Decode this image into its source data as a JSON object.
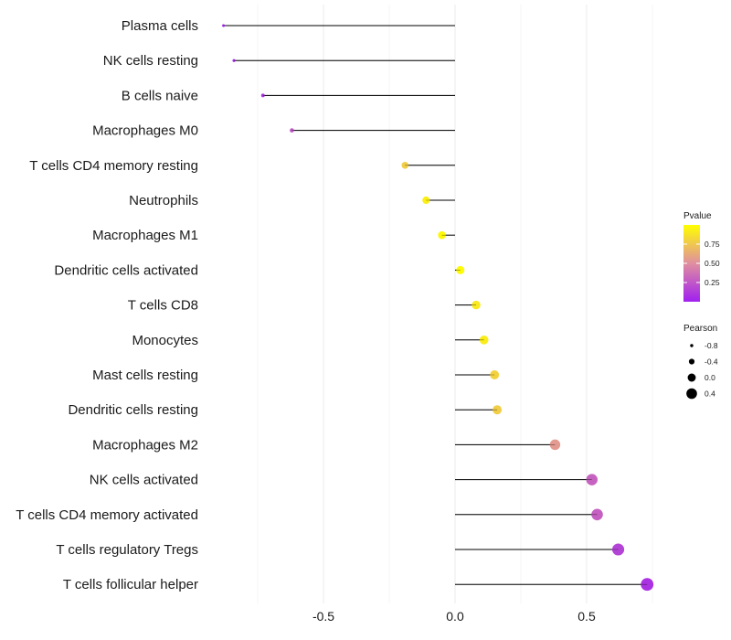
{
  "chart_data": {
    "type": "lollipop",
    "title": "",
    "xlabel": "",
    "ylabel": "",
    "xlim": [
      -0.98,
      0.78
    ],
    "xticks": [
      -0.5,
      0.0,
      0.5
    ],
    "xtick_labels": [
      "-0.5",
      "0.0",
      "0.5"
    ],
    "grid": true,
    "categories": [
      "Plasma cells",
      "NK cells resting",
      "B cells naive",
      "Macrophages M0",
      "T cells CD4 memory resting",
      "Neutrophils",
      "Macrophages M1",
      "Dendritic cells activated",
      "T cells CD8",
      "Monocytes",
      "Mast cells resting",
      "Dendritic cells resting",
      "Macrophages M2",
      "NK cells activated",
      "T cells CD4 memory activated",
      "T cells regulatory  Tregs ",
      "T cells follicular helper"
    ],
    "values": [
      -0.88,
      -0.84,
      -0.73,
      -0.62,
      -0.19,
      -0.11,
      -0.05,
      0.02,
      0.08,
      0.11,
      0.15,
      0.16,
      0.38,
      0.52,
      0.54,
      0.62,
      0.73
    ],
    "pvalues": [
      0.02,
      0.03,
      0.1,
      0.25,
      0.78,
      0.93,
      0.97,
      0.98,
      0.9,
      0.92,
      0.8,
      0.78,
      0.55,
      0.3,
      0.29,
      0.16,
      0.08
    ],
    "legend_color": {
      "title": "Pvalue",
      "ticks": [
        0.75,
        0.5,
        0.25
      ],
      "tick_labels": [
        "0.75",
        "0.50",
        "0.25"
      ],
      "range": [
        0.0,
        1.0
      ],
      "low_color": "#a020f0",
      "mid_color": "#e08fa0",
      "high_color": "#ffff00"
    },
    "legend_size": {
      "title": "Pearson",
      "values": [
        -0.8,
        -0.4,
        0.0,
        0.4
      ],
      "labels": [
        "-0.8",
        "-0.4",
        "0.0",
        "0.4"
      ]
    },
    "legend_position": "right"
  }
}
